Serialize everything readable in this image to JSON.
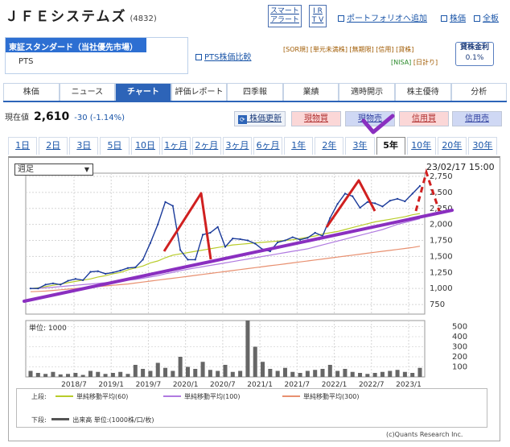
{
  "header": {
    "company": "ＪＦＥシステムズ",
    "code": "(4832)",
    "alert_btn": [
      "スマート",
      "アラート"
    ],
    "ir_btn": [
      "I R",
      "T V"
    ],
    "links": [
      "ポートフォリオへ追加",
      "株価",
      "全板"
    ]
  },
  "market": {
    "selected": "東証スタンダード（当社優先市場）",
    "pts": "PTS",
    "compare": "PTS株価比較"
  },
  "tags": {
    "line1": "[SOR規] [単元未満株] [無期限]  [信用] [貸株]",
    "nisa": "[NISA]",
    "ne": "[日計り]"
  },
  "margin": {
    "label": "貸株金利",
    "value": "0.1%"
  },
  "tabs": [
    "株価",
    "ニュース",
    "チャート",
    "評価レポート",
    "四季報",
    "業績",
    "適時開示",
    "株主優待",
    "分析"
  ],
  "price": {
    "label": "現在値",
    "value": "2,610",
    "change": "-30 (-1.14%)"
  },
  "actions": [
    "株価更新",
    "現物買",
    "現物売",
    "信用買",
    "信用売"
  ],
  "periods": [
    "1日",
    "2日",
    "3日",
    "5日",
    "10日",
    "1ヶ月",
    "2ヶ月",
    "3ヶ月",
    "6ヶ月",
    "1年",
    "2年",
    "3年",
    "5年",
    "10年",
    "20年",
    "30年"
  ],
  "active_period": "5年",
  "chart": {
    "interval": "週足",
    "datetime": "23/02/17 15:00",
    "volume_unit": "単位: 1000"
  },
  "chart_data": {
    "type": "line",
    "y_ticks": [
      "2,750",
      "2,500",
      "2,250",
      "2,000",
      "1,750",
      "1,500",
      "1,250",
      "1,000",
      "750"
    ],
    "vol_ticks": [
      "500",
      "400",
      "300",
      "200",
      "100"
    ],
    "x_ticks": [
      "2018/7",
      "2019/1",
      "2019/7",
      "2020/1",
      "2020/7",
      "2021/1",
      "2021/7",
      "2022/1",
      "2022/7",
      "2023/1"
    ],
    "ylim": [
      600,
      2800
    ],
    "price": [
      1000,
      1000,
      1060,
      1080,
      1060,
      1120,
      1150,
      1130,
      1260,
      1270,
      1230,
      1250,
      1280,
      1320,
      1330,
      1450,
      1710,
      2000,
      2350,
      2290,
      1600,
      1450,
      1450,
      1840,
      1870,
      1960,
      1650,
      1780,
      1770,
      1750,
      1700,
      1610,
      1580,
      1720,
      1750,
      1800,
      1760,
      1790,
      1870,
      1820,
      2100,
      2320,
      2480,
      2440,
      2260,
      2350,
      2330,
      2280,
      2370,
      2400,
      2360,
      2480,
      2600
    ],
    "ma60": [
      1000,
      1010,
      1030,
      1050,
      1070,
      1090,
      1110,
      1130,
      1150,
      1180,
      1200,
      1230,
      1250,
      1290,
      1320,
      1350,
      1400,
      1430,
      1480,
      1520,
      1540,
      1560,
      1580,
      1600,
      1620,
      1640,
      1660,
      1680,
      1690,
      1700,
      1710,
      1720,
      1730,
      1740,
      1750,
      1760,
      1780,
      1800,
      1820,
      1850,
      1870,
      1890,
      1920,
      1950,
      1980,
      2010,
      2040,
      2060,
      2080,
      2100,
      2120,
      2150,
      2170
    ],
    "ma100": [
      1000,
      1000,
      1010,
      1020,
      1030,
      1040,
      1050,
      1060,
      1070,
      1080,
      1090,
      1100,
      1110,
      1130,
      1140,
      1160,
      1180,
      1200,
      1230,
      1250,
      1280,
      1300,
      1320,
      1340,
      1360,
      1380,
      1400,
      1420,
      1440,
      1460,
      1480,
      1500,
      1520,
      1540,
      1560,
      1580,
      1600,
      1620,
      1650,
      1680,
      1710,
      1740,
      1770,
      1800,
      1830,
      1860,
      1890,
      1920,
      1960,
      2000,
      2030,
      2060,
      2090
    ],
    "ma300": [
      950,
      955,
      960,
      970,
      980,
      990,
      1000,
      1010,
      1020,
      1030,
      1040,
      1050,
      1060,
      1070,
      1085,
      1100,
      1115,
      1130,
      1145,
      1160,
      1175,
      1190,
      1205,
      1220,
      1235,
      1250,
      1265,
      1280,
      1295,
      1310,
      1325,
      1340,
      1355,
      1370,
      1385,
      1400,
      1415,
      1430,
      1445,
      1460,
      1475,
      1490,
      1505,
      1520,
      1535,
      1550,
      1565,
      1580,
      1595,
      1610,
      1625,
      1640,
      1660
    ],
    "volume": [
      60,
      40,
      30,
      50,
      25,
      30,
      40,
      20,
      60,
      50,
      30,
      40,
      50,
      30,
      120,
      80,
      60,
      140,
      90,
      60,
      200,
      100,
      80,
      150,
      70,
      60,
      120,
      50,
      60,
      560,
      300,
      150,
      80,
      60,
      90,
      50,
      40,
      60,
      70,
      80,
      120,
      60,
      80,
      50,
      40,
      30,
      40,
      50,
      60,
      70,
      50,
      40,
      90
    ],
    "legend": {
      "upper_label": "上段:",
      "ma60_label": "単純移動平均(60)",
      "ma100_label": "単純移動平均(100)",
      "ma300_label": "単純移動平均(300)",
      "lower_label": "下段:",
      "volume_label": "出来高 単位:(1000株/口/枚)"
    },
    "colors": {
      "price": "#1a3a9a",
      "ma60": "#b8cc2a",
      "ma100": "#b07ae0",
      "ma300": "#e89070",
      "volume": "#666666"
    }
  },
  "credit": "(c)Quants Research Inc."
}
